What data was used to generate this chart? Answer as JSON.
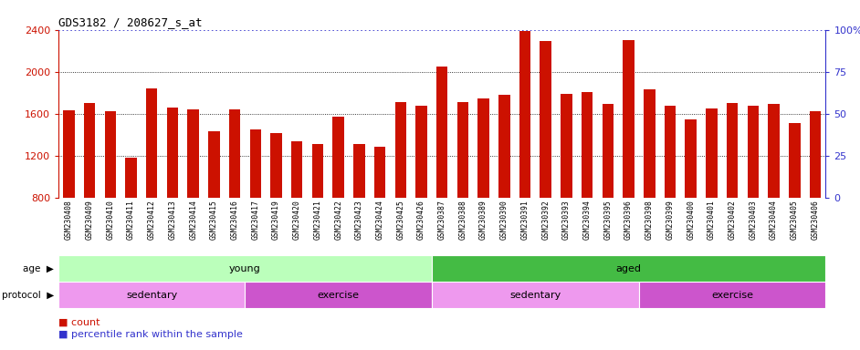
{
  "title": "GDS3182 / 208627_s_at",
  "samples": [
    "GSM230408",
    "GSM230409",
    "GSM230410",
    "GSM230411",
    "GSM230412",
    "GSM230413",
    "GSM230414",
    "GSM230415",
    "GSM230416",
    "GSM230417",
    "GSM230419",
    "GSM230420",
    "GSM230421",
    "GSM230422",
    "GSM230423",
    "GSM230424",
    "GSM230425",
    "GSM230426",
    "GSM230387",
    "GSM230388",
    "GSM230389",
    "GSM230390",
    "GSM230391",
    "GSM230392",
    "GSM230393",
    "GSM230394",
    "GSM230395",
    "GSM230396",
    "GSM230398",
    "GSM230399",
    "GSM230400",
    "GSM230401",
    "GSM230402",
    "GSM230403",
    "GSM230404",
    "GSM230405",
    "GSM230406"
  ],
  "values": [
    1630,
    1700,
    1620,
    1180,
    1840,
    1660,
    1640,
    1430,
    1640,
    1450,
    1420,
    1340,
    1310,
    1570,
    1310,
    1290,
    1710,
    1680,
    2050,
    1710,
    1750,
    1780,
    2390,
    2290,
    1790,
    1810,
    1690,
    2300,
    1830,
    1680,
    1550,
    1650,
    1700,
    1680,
    1690,
    1510,
    1620
  ],
  "bar_color": "#cc1100",
  "dotted_line_color": "#3333cc",
  "dotted_line_value": 2400,
  "ylim_left": [
    800,
    2400
  ],
  "ylim_right": [
    0,
    100
  ],
  "yticks_left": [
    800,
    1200,
    1600,
    2000,
    2400
  ],
  "yticks_right": [
    0,
    25,
    50,
    75,
    100
  ],
  "grid_yticks": [
    1200,
    1600,
    2000
  ],
  "grid_color": "black",
  "axis_label_color_left": "#cc1100",
  "axis_label_color_right": "#3333cc",
  "age_groups": [
    {
      "label": "young",
      "start": 0,
      "end": 18,
      "color": "#bbffbb"
    },
    {
      "label": "aged",
      "start": 18,
      "end": 37,
      "color": "#44bb44"
    }
  ],
  "protocol_groups": [
    {
      "label": "sedentary",
      "start": 0,
      "end": 9,
      "color": "#ee99ee"
    },
    {
      "label": "exercise",
      "start": 9,
      "end": 18,
      "color": "#cc55cc"
    },
    {
      "label": "sedentary",
      "start": 18,
      "end": 28,
      "color": "#ee99ee"
    },
    {
      "label": "exercise",
      "start": 28,
      "end": 37,
      "color": "#cc55cc"
    }
  ],
  "legend_count_color": "#cc1100",
  "legend_pct_color": "#3333cc",
  "xtick_bg_color": "#d8d8d8",
  "fig_width": 9.42,
  "fig_height": 3.84,
  "dpi": 100
}
